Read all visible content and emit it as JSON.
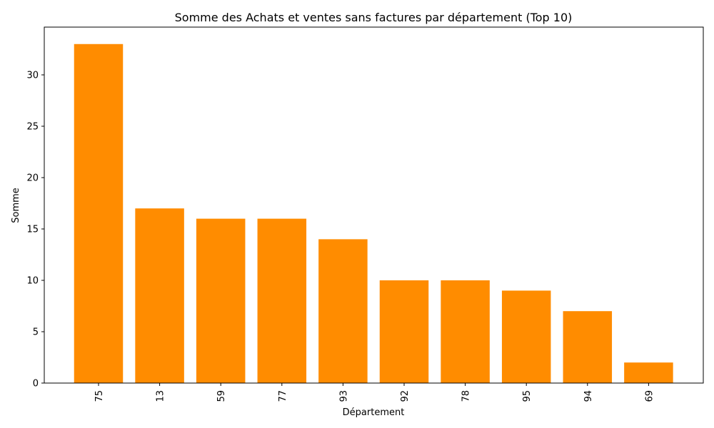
{
  "chart_data": {
    "type": "bar",
    "title": "Somme des Achats et ventes sans factures par département (Top 10)",
    "xlabel": "Département",
    "ylabel": "Somme",
    "categories": [
      "75",
      "13",
      "59",
      "77",
      "93",
      "92",
      "78",
      "95",
      "94",
      "69"
    ],
    "values": [
      33,
      17,
      16,
      16,
      14,
      10,
      10,
      9,
      7,
      2
    ],
    "ylim": [
      0,
      34.65
    ],
    "yticks": [
      0,
      5,
      10,
      15,
      20,
      25,
      30
    ],
    "bar_color": "#ff8c00",
    "grid": false,
    "legend": "none"
  }
}
